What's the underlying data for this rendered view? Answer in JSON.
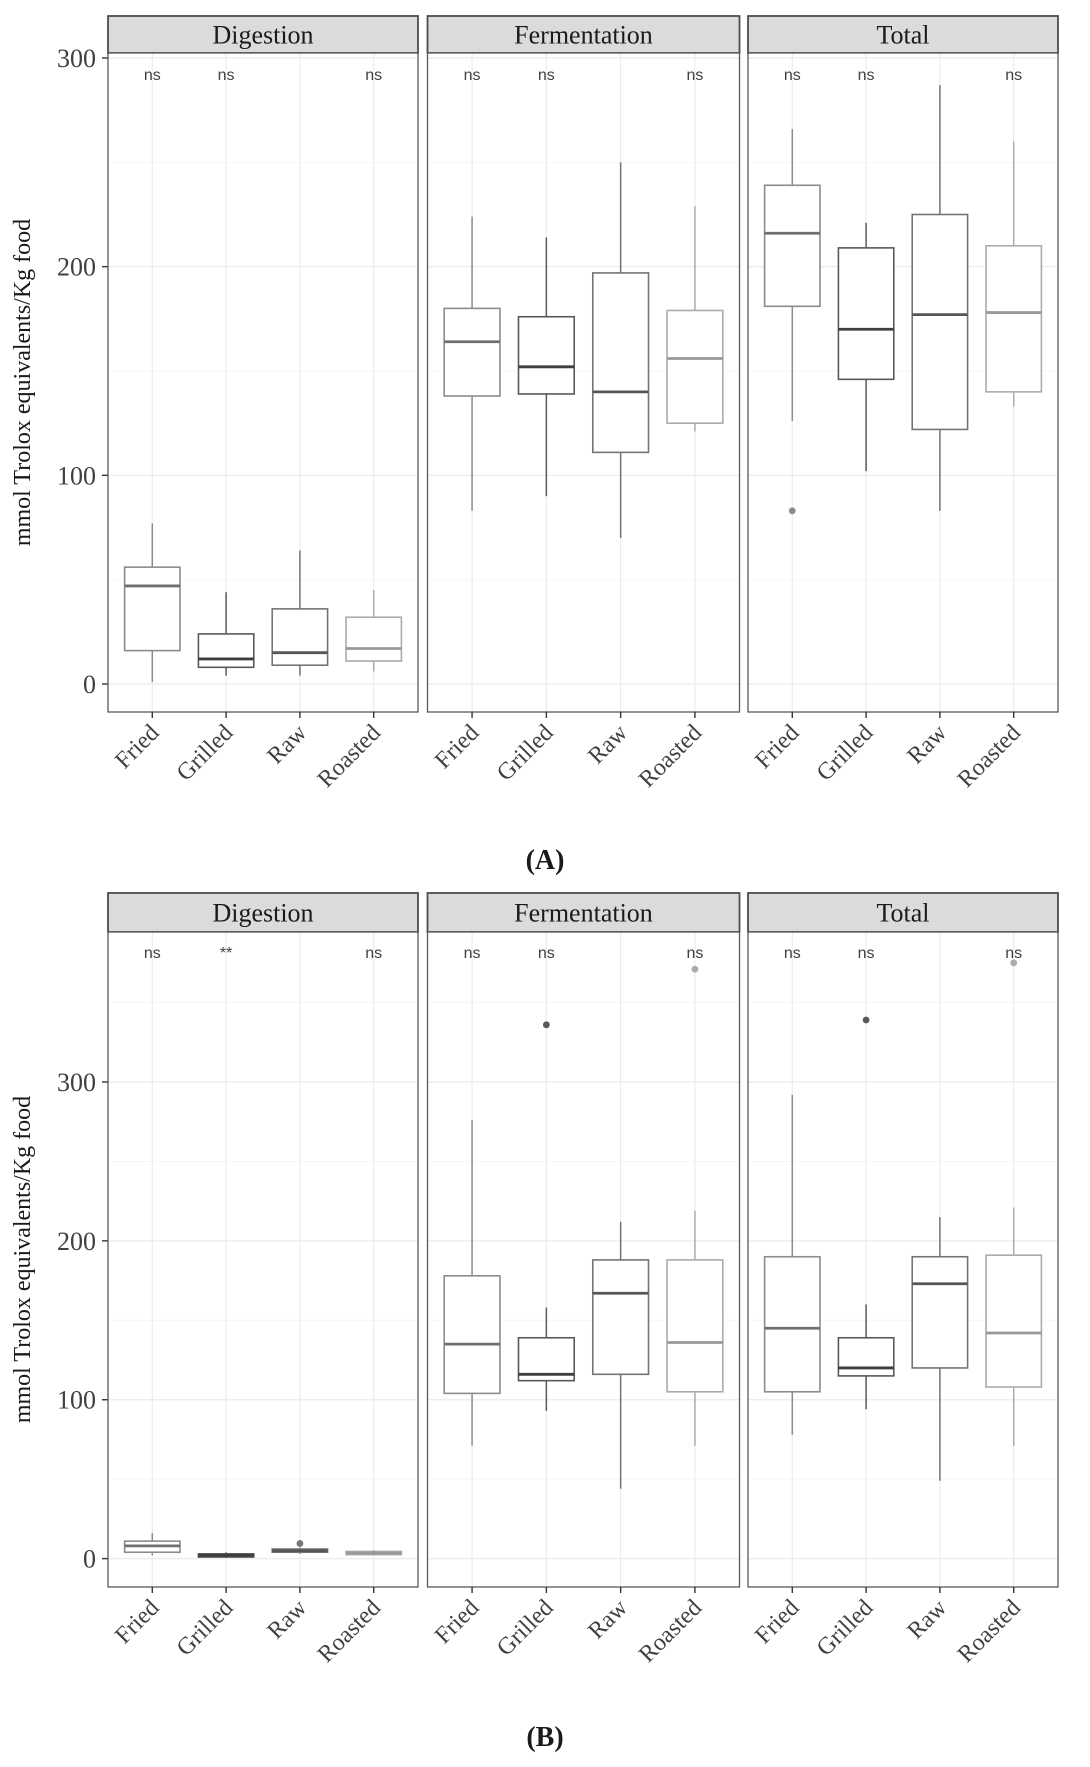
{
  "figure": {
    "caption_a": "(A)",
    "caption_b": "(B)",
    "y_axis_title": "mmol Trolox equivalents/Kg food",
    "facet_labels": [
      "Digestion",
      "Fermentation",
      "Total"
    ],
    "categories": [
      "Fried",
      "Grilled",
      "Raw",
      "Roasted"
    ]
  },
  "style": {
    "background": "#FFFFFF",
    "strip_bg": "#DBDBDB",
    "strip_border": "#4D4D4D",
    "panel_border": "#595959",
    "grid_major": "#EBEBEB",
    "grid_minor": "#F5F5F5",
    "tick_color": "#333333",
    "category_colors": {
      "Fried": "#8C8C8C",
      "Grilled": "#595959",
      "Raw": "#747474",
      "Roasted": "#ABABAB"
    },
    "median_colors": {
      "Fried": "#6F6F6F",
      "Grilled": "#3E3E3E",
      "Raw": "#565656",
      "Roasted": "#999999"
    }
  },
  "chart_data": [
    {
      "type": "boxplot",
      "panel": "A",
      "ylabel": "mmol Trolox equivalents/Kg food",
      "xlabel": "",
      "yticks": [
        0,
        100,
        200,
        300
      ],
      "yminor": [
        50,
        150,
        250
      ],
      "ylim": [
        -13,
        301
      ],
      "grid": true,
      "categories": [
        "Fried",
        "Grilled",
        "Raw",
        "Roasted"
      ],
      "facets": [
        {
          "name": "Digestion",
          "boxes": [
            {
              "category": "Fried",
              "whisker_low": 1,
              "q1": 16,
              "median": 47,
              "q3": 56,
              "whisker_high": 77,
              "outliers": []
            },
            {
              "category": "Grilled",
              "whisker_low": 4,
              "q1": 8,
              "median": 12,
              "q3": 24,
              "whisker_high": 44,
              "outliers": []
            },
            {
              "category": "Raw",
              "whisker_low": 4,
              "q1": 9,
              "median": 15,
              "q3": 36,
              "whisker_high": 64,
              "outliers": []
            },
            {
              "category": "Roasted",
              "whisker_low": 6,
              "q1": 11,
              "median": 17,
              "q3": 32,
              "whisker_high": 45,
              "outliers": []
            }
          ],
          "significance": [
            {
              "category": "Fried",
              "label": "ns"
            },
            {
              "category": "Grilled",
              "label": "ns"
            },
            {
              "category": "Roasted",
              "label": "ns"
            }
          ]
        },
        {
          "name": "Fermentation",
          "boxes": [
            {
              "category": "Fried",
              "whisker_low": 83,
              "q1": 138,
              "median": 164,
              "q3": 180,
              "whisker_high": 224,
              "outliers": []
            },
            {
              "category": "Grilled",
              "whisker_low": 90,
              "q1": 139,
              "median": 152,
              "q3": 176,
              "whisker_high": 214,
              "outliers": []
            },
            {
              "category": "Raw",
              "whisker_low": 70,
              "q1": 111,
              "median": 140,
              "q3": 197,
              "whisker_high": 250,
              "outliers": []
            },
            {
              "category": "Roasted",
              "whisker_low": 121,
              "q1": 125,
              "median": 156,
              "q3": 179,
              "whisker_high": 229,
              "outliers": []
            }
          ],
          "significance": [
            {
              "category": "Fried",
              "label": "ns"
            },
            {
              "category": "Grilled",
              "label": "ns"
            },
            {
              "category": "Roasted",
              "label": "ns"
            }
          ]
        },
        {
          "name": "Total",
          "boxes": [
            {
              "category": "Fried",
              "whisker_low": 126,
              "q1": 181,
              "median": 216,
              "q3": 239,
              "whisker_high": 266,
              "outliers": [
                83
              ]
            },
            {
              "category": "Grilled",
              "whisker_low": 102,
              "q1": 146,
              "median": 170,
              "q3": 209,
              "whisker_high": 221,
              "outliers": []
            },
            {
              "category": "Raw",
              "whisker_low": 83,
              "q1": 122,
              "median": 177,
              "q3": 225,
              "whisker_high": 287,
              "outliers": []
            },
            {
              "category": "Roasted",
              "whisker_low": 133,
              "q1": 140,
              "median": 178,
              "q3": 210,
              "whisker_high": 260,
              "outliers": []
            }
          ],
          "significance": [
            {
              "category": "Fried",
              "label": "ns"
            },
            {
              "category": "Grilled",
              "label": "ns"
            },
            {
              "category": "Roasted",
              "label": "ns"
            }
          ]
        }
      ]
    },
    {
      "type": "boxplot",
      "panel": "B",
      "ylabel": "mmol Trolox equivalents/Kg food",
      "xlabel": "",
      "yticks": [
        0,
        100,
        200,
        300
      ],
      "yminor": [
        50,
        150,
        250,
        350
      ],
      "ylim": [
        -18,
        394
      ],
      "grid": true,
      "categories": [
        "Fried",
        "Grilled",
        "Raw",
        "Roasted"
      ],
      "facets": [
        {
          "name": "Digestion",
          "boxes": [
            {
              "category": "Fried",
              "whisker_low": 2,
              "q1": 4,
              "median": 8,
              "q3": 11,
              "whisker_high": 16,
              "outliers": []
            },
            {
              "category": "Grilled",
              "whisker_low": 0.5,
              "q1": 1,
              "median": 2,
              "q3": 3,
              "whisker_high": 4,
              "outliers": []
            },
            {
              "category": "Raw",
              "whisker_low": 3,
              "q1": 4,
              "median": 5,
              "q3": 6,
              "whisker_high": 7,
              "outliers": [
                9.5
              ]
            },
            {
              "category": "Roasted",
              "whisker_low": 2,
              "q1": 2.5,
              "median": 3.5,
              "q3": 4.5,
              "whisker_high": 5.5,
              "outliers": []
            }
          ],
          "significance": [
            {
              "category": "Fried",
              "label": "ns"
            },
            {
              "category": "Grilled",
              "label": "**"
            },
            {
              "category": "Roasted",
              "label": "ns"
            }
          ]
        },
        {
          "name": "Fermentation",
          "boxes": [
            {
              "category": "Fried",
              "whisker_low": 71,
              "q1": 104,
              "median": 135,
              "q3": 178,
              "whisker_high": 276,
              "outliers": []
            },
            {
              "category": "Grilled",
              "whisker_low": 93,
              "q1": 112,
              "median": 116,
              "q3": 139,
              "whisker_high": 158,
              "outliers": [
                336
              ]
            },
            {
              "category": "Raw",
              "whisker_low": 44,
              "q1": 116,
              "median": 167,
              "q3": 188,
              "whisker_high": 212,
              "outliers": []
            },
            {
              "category": "Roasted",
              "whisker_low": 71,
              "q1": 105,
              "median": 136,
              "q3": 188,
              "whisker_high": 219,
              "outliers": [
                371
              ]
            }
          ],
          "significance": [
            {
              "category": "Fried",
              "label": "ns"
            },
            {
              "category": "Grilled",
              "label": "ns"
            },
            {
              "category": "Roasted",
              "label": "ns"
            }
          ]
        },
        {
          "name": "Total",
          "boxes": [
            {
              "category": "Fried",
              "whisker_low": 78,
              "q1": 105,
              "median": 145,
              "q3": 190,
              "whisker_high": 292,
              "outliers": []
            },
            {
              "category": "Grilled",
              "whisker_low": 94,
              "q1": 115,
              "median": 120,
              "q3": 139,
              "whisker_high": 160,
              "outliers": [
                339
              ]
            },
            {
              "category": "Raw",
              "whisker_low": 49,
              "q1": 120,
              "median": 173,
              "q3": 190,
              "whisker_high": 215,
              "outliers": []
            },
            {
              "category": "Roasted",
              "whisker_low": 71,
              "q1": 108,
              "median": 142,
              "q3": 191,
              "whisker_high": 221,
              "outliers": [
                375
              ]
            }
          ],
          "significance": [
            {
              "category": "Fried",
              "label": "ns"
            },
            {
              "category": "Grilled",
              "label": "ns"
            },
            {
              "category": "Roasted",
              "label": "ns"
            }
          ]
        }
      ]
    }
  ]
}
